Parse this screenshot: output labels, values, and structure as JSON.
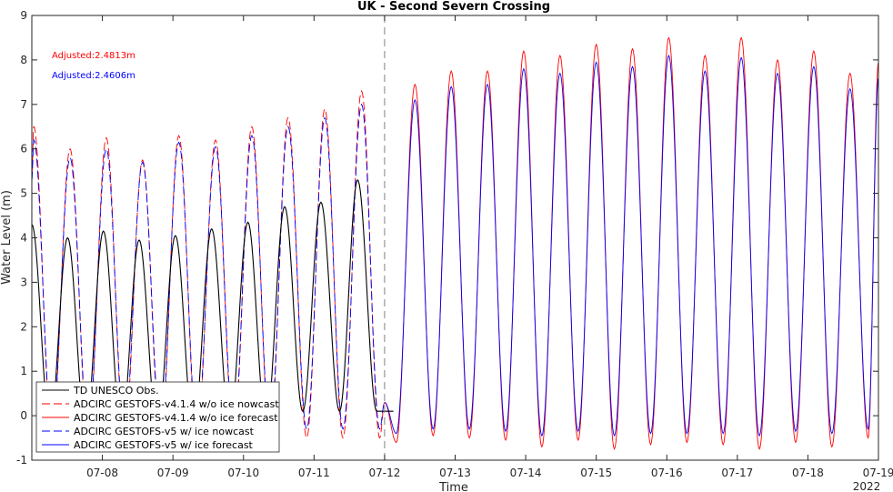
{
  "chart_data": {
    "type": "line",
    "title": "UK - Second Severn Crossing",
    "xlabel": "Time",
    "ylabel": "Water Level (m)",
    "year_label": "2022",
    "xlim": [
      "2022-07-07T00:00",
      "2022-07-19T00:00"
    ],
    "ylim": [
      -1,
      9
    ],
    "yticks": [
      -1,
      0,
      1,
      2,
      3,
      4,
      5,
      6,
      7,
      8,
      9
    ],
    "xticks": [
      "07-08",
      "07-09",
      "07-10",
      "07-11",
      "07-12",
      "07-13",
      "07-14",
      "07-15",
      "07-16",
      "07-17",
      "07-18",
      "07-19"
    ],
    "grid": false,
    "legend_position": "bottom-left",
    "forecast_start": "2022-07-12T00:00",
    "annotations": [
      {
        "text": "Adjusted:2.4813m",
        "color": "#ff0000"
      },
      {
        "text": "Adjusted:2.4606m",
        "color": "#0000ff"
      }
    ],
    "series": [
      {
        "name": "TD UNESCO Obs.",
        "color": "#000000",
        "dash": "solid",
        "x": [
          "2022-07-07T00:00",
          "2022-07-07T06:10",
          "2022-07-07T12:10",
          "2022-07-07T18:20",
          "2022-07-08T00:20",
          "2022-07-08T06:30",
          "2022-07-08T12:30",
          "2022-07-08T18:40",
          "2022-07-09T00:50",
          "2022-07-09T07:00",
          "2022-07-09T13:10",
          "2022-07-09T19:20",
          "2022-07-10T01:30",
          "2022-07-10T07:40",
          "2022-07-10T14:00",
          "2022-07-10T20:10",
          "2022-07-11T02:20",
          "2022-07-11T08:40",
          "2022-07-11T14:50",
          "2022-07-11T21:20",
          "2022-07-12T03:00"
        ],
        "values": [
          4.3,
          -0.2,
          4.0,
          -0.3,
          4.15,
          -0.3,
          3.95,
          -0.3,
          4.05,
          -0.3,
          4.2,
          -0.2,
          4.35,
          -0.2,
          4.7,
          0.1,
          4.8,
          0.1,
          5.3,
          0.1,
          0.1
        ]
      },
      {
        "name": "ADCIRC GESTOFS-v4.1.4 w/o ice nowcast",
        "color": "#ff0000",
        "dash": "dashed",
        "x": [
          "2022-07-07T00:00",
          "2022-07-07T00:40",
          "2022-07-07T06:50",
          "2022-07-07T13:00",
          "2022-07-07T19:10",
          "2022-07-08T01:20",
          "2022-07-08T07:30",
          "2022-07-08T13:40",
          "2022-07-08T19:50",
          "2022-07-09T02:00",
          "2022-07-09T08:10",
          "2022-07-09T14:30",
          "2022-07-09T20:40",
          "2022-07-10T02:50",
          "2022-07-10T09:00",
          "2022-07-10T15:10",
          "2022-07-10T21:30",
          "2022-07-11T03:40",
          "2022-07-11T09:50",
          "2022-07-11T16:10",
          "2022-07-11T22:20",
          "2022-07-12T00:00"
        ],
        "values": [
          5.4,
          6.5,
          -0.5,
          6.0,
          -0.5,
          6.25,
          -0.5,
          5.75,
          -0.5,
          6.3,
          -0.5,
          6.2,
          -0.5,
          6.5,
          -0.5,
          6.7,
          -0.5,
          6.9,
          -0.5,
          7.3,
          -0.5,
          0.3
        ]
      },
      {
        "name": "ADCIRC GESTOFS-v4.1.4 w/o ice forecast",
        "color": "#ff0000",
        "dash": "solid",
        "x": [
          "2022-07-12T00:00",
          "2022-07-12T04:00",
          "2022-07-12T10:20",
          "2022-07-12T16:30",
          "2022-07-12T22:40",
          "2022-07-13T04:50",
          "2022-07-13T11:00",
          "2022-07-13T17:10",
          "2022-07-13T23:20",
          "2022-07-14T05:30",
          "2022-07-14T11:40",
          "2022-07-14T17:50",
          "2022-07-15T00:00",
          "2022-07-15T06:10",
          "2022-07-15T12:20",
          "2022-07-15T18:30",
          "2022-07-16T00:40",
          "2022-07-16T06:50",
          "2022-07-16T13:00",
          "2022-07-16T19:10",
          "2022-07-17T01:20",
          "2022-07-17T07:30",
          "2022-07-17T13:40",
          "2022-07-17T19:50",
          "2022-07-18T02:00",
          "2022-07-18T08:10",
          "2022-07-18T14:20",
          "2022-07-18T20:30",
          "2022-07-19T00:00"
        ],
        "values": [
          0.3,
          -0.6,
          7.45,
          -0.45,
          7.75,
          -0.5,
          7.75,
          -0.55,
          8.2,
          -0.7,
          8.1,
          -0.55,
          8.35,
          -0.75,
          8.25,
          -0.65,
          8.5,
          -0.6,
          8.1,
          -0.65,
          8.5,
          -0.75,
          8.0,
          -0.6,
          8.2,
          -0.7,
          7.7,
          -0.5,
          7.95
        ]
      },
      {
        "name": "ADCIRC GESTOFS-v5 w/ ice nowcast",
        "color": "#0000ff",
        "dash": "dashed",
        "x": [
          "2022-07-07T00:00",
          "2022-07-07T00:40",
          "2022-07-07T06:50",
          "2022-07-07T13:00",
          "2022-07-07T19:10",
          "2022-07-08T01:20",
          "2022-07-08T07:30",
          "2022-07-08T13:40",
          "2022-07-08T19:50",
          "2022-07-09T02:00",
          "2022-07-09T08:10",
          "2022-07-09T14:30",
          "2022-07-09T20:40",
          "2022-07-10T02:50",
          "2022-07-10T09:00",
          "2022-07-10T15:10",
          "2022-07-10T21:30",
          "2022-07-11T03:40",
          "2022-07-11T09:50",
          "2022-07-11T16:10",
          "2022-07-11T22:20",
          "2022-07-12T00:00"
        ],
        "values": [
          5.3,
          6.2,
          -0.3,
          5.8,
          -0.3,
          6.0,
          -0.3,
          5.7,
          -0.3,
          6.15,
          -0.3,
          6.05,
          -0.3,
          6.3,
          -0.3,
          6.5,
          -0.3,
          6.7,
          -0.3,
          7.0,
          -0.3,
          0.3
        ]
      },
      {
        "name": "ADCIRC GESTOFS-v5 w/ ice forecast",
        "color": "#0000ff",
        "dash": "solid",
        "x": [
          "2022-07-12T00:00",
          "2022-07-12T04:00",
          "2022-07-12T10:20",
          "2022-07-12T16:30",
          "2022-07-12T22:40",
          "2022-07-13T04:50",
          "2022-07-13T11:00",
          "2022-07-13T17:10",
          "2022-07-13T23:20",
          "2022-07-14T05:30",
          "2022-07-14T11:40",
          "2022-07-14T17:50",
          "2022-07-15T00:00",
          "2022-07-15T06:10",
          "2022-07-15T12:20",
          "2022-07-15T18:30",
          "2022-07-16T00:40",
          "2022-07-16T06:50",
          "2022-07-16T13:00",
          "2022-07-16T19:10",
          "2022-07-17T01:20",
          "2022-07-17T07:30",
          "2022-07-17T13:40",
          "2022-07-17T19:50",
          "2022-07-18T02:00",
          "2022-07-18T08:10",
          "2022-07-18T14:20",
          "2022-07-18T20:30",
          "2022-07-19T00:00"
        ],
        "values": [
          0.3,
          -0.4,
          7.1,
          -0.3,
          7.4,
          -0.3,
          7.45,
          -0.35,
          7.8,
          -0.45,
          7.7,
          -0.35,
          7.95,
          -0.45,
          7.85,
          -0.4,
          8.1,
          -0.4,
          7.75,
          -0.4,
          8.05,
          -0.45,
          7.7,
          -0.35,
          7.85,
          -0.4,
          7.35,
          -0.3,
          7.6
        ]
      }
    ]
  }
}
